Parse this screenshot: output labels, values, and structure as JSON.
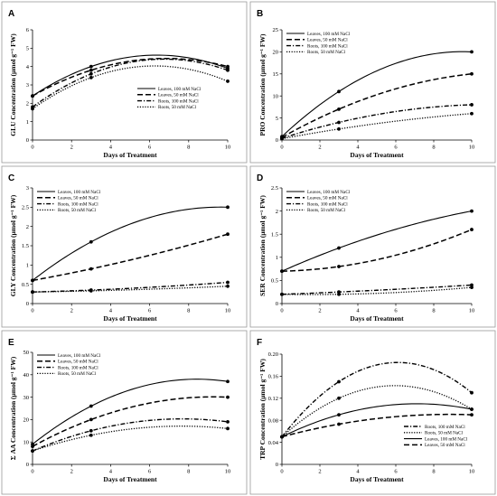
{
  "chart_data": [
    {
      "type": "line",
      "panel_label": "A",
      "xlabel": "Days of Treatment",
      "ylabel": "GLU Concentration (µmol g⁻¹ FW)",
      "xlim": [
        0,
        10
      ],
      "ylim": [
        0,
        6
      ],
      "xticks": [
        0,
        2,
        4,
        6,
        8,
        10
      ],
      "yticks": [
        0,
        1,
        2,
        3,
        4,
        5,
        6
      ],
      "legend_position": "bottom-right",
      "series": [
        {
          "name": "Leaves, 100 mM NaCl",
          "style": "solid",
          "x": [
            0,
            3,
            10
          ],
          "y": [
            2.4,
            4.0,
            3.9
          ]
        },
        {
          "name": "Leaves, 50 mM NaCl",
          "style": "long-dash",
          "x": [
            0,
            3,
            10
          ],
          "y": [
            2.4,
            3.8,
            4.0
          ]
        },
        {
          "name": "Roots, 100 mM NaCl",
          "style": "dash-dot",
          "x": [
            0,
            3,
            10
          ],
          "y": [
            1.8,
            3.6,
            3.8
          ]
        },
        {
          "name": "Roots, 50 mM NaCl",
          "style": "dotted",
          "x": [
            0,
            3,
            10
          ],
          "y": [
            1.7,
            3.4,
            3.2
          ]
        }
      ]
    },
    {
      "type": "line",
      "panel_label": "B",
      "xlabel": "Days of Treatment",
      "ylabel": "PRO Concentration (µmol g⁻¹ FW)",
      "xlim": [
        0,
        10
      ],
      "ylim": [
        0,
        25
      ],
      "xticks": [
        0,
        2,
        4,
        6,
        8,
        10
      ],
      "yticks": [
        0,
        5,
        10,
        15,
        20,
        25
      ],
      "legend_position": "top-left",
      "series": [
        {
          "name": "Leaves, 100 mM NaCl",
          "style": "solid",
          "x": [
            0,
            3,
            10
          ],
          "y": [
            0.8,
            11,
            20
          ]
        },
        {
          "name": "Leaves, 50 mM NaCl",
          "style": "long-dash",
          "x": [
            0,
            3,
            10
          ],
          "y": [
            0.6,
            7,
            15
          ]
        },
        {
          "name": "Roots, 100 mM NaCl",
          "style": "dash-dot",
          "x": [
            0,
            3,
            10
          ],
          "y": [
            0.4,
            4,
            8
          ]
        },
        {
          "name": "Roots, 50 mM NaCl",
          "style": "dotted",
          "x": [
            0,
            3,
            10
          ],
          "y": [
            0.3,
            2.5,
            6
          ]
        }
      ]
    },
    {
      "type": "line",
      "panel_label": "C",
      "xlabel": "Days of Treatment",
      "ylabel": "GLY Concentration (µmol g⁻¹ FW)",
      "xlim": [
        0,
        10
      ],
      "ylim": [
        0,
        3.0
      ],
      "xticks": [
        0,
        2,
        4,
        6,
        8,
        10
      ],
      "yticks": [
        0,
        0.5,
        1.0,
        1.5,
        2.0,
        2.5,
        3.0
      ],
      "legend_position": "top-left",
      "series": [
        {
          "name": "Leaves, 100 mM NaCl",
          "style": "solid",
          "x": [
            0,
            3,
            10
          ],
          "y": [
            0.6,
            1.6,
            2.5
          ]
        },
        {
          "name": "Leaves, 50 mM NaCl",
          "style": "long-dash",
          "x": [
            0,
            3,
            10
          ],
          "y": [
            0.6,
            0.9,
            1.8
          ]
        },
        {
          "name": "Roots, 100 mM NaCl",
          "style": "dash-dot",
          "x": [
            0,
            3,
            10
          ],
          "y": [
            0.3,
            0.35,
            0.55
          ]
        },
        {
          "name": "Roots, 50 mM NaCl",
          "style": "dotted",
          "x": [
            0,
            3,
            10
          ],
          "y": [
            0.3,
            0.33,
            0.45
          ]
        }
      ]
    },
    {
      "type": "line",
      "panel_label": "D",
      "xlabel": "Days of Treatment",
      "ylabel": "SER Concentration (µmol g⁻¹ FW)",
      "xlim": [
        0,
        10
      ],
      "ylim": [
        0,
        2.5
      ],
      "xticks": [
        0,
        2,
        4,
        6,
        8,
        10
      ],
      "yticks": [
        0,
        0.5,
        1.0,
        1.5,
        2.0,
        2.5
      ],
      "legend_position": "top-left",
      "series": [
        {
          "name": "Leaves, 100 mM NaCl",
          "style": "solid",
          "x": [
            0,
            3,
            10
          ],
          "y": [
            0.7,
            1.2,
            2.0
          ]
        },
        {
          "name": "Leaves, 50 mM NaCl",
          "style": "long-dash",
          "x": [
            0,
            3,
            10
          ],
          "y": [
            0.7,
            0.8,
            1.6
          ]
        },
        {
          "name": "Roots, 100 mM NaCl",
          "style": "dash-dot",
          "x": [
            0,
            3,
            10
          ],
          "y": [
            0.2,
            0.25,
            0.4
          ]
        },
        {
          "name": "Roots, 50 mM NaCl",
          "style": "dotted",
          "x": [
            0,
            3,
            10
          ],
          "y": [
            0.2,
            0.2,
            0.35
          ]
        }
      ]
    },
    {
      "type": "line",
      "panel_label": "E",
      "xlabel": "Days of Treatment",
      "ylabel": "Σ AA Concentration (µmol g⁻¹ FW)",
      "xlim": [
        0,
        10
      ],
      "ylim": [
        0,
        50
      ],
      "xticks": [
        0,
        2,
        4,
        6,
        8,
        10
      ],
      "yticks": [
        0,
        10,
        20,
        30,
        40,
        50
      ],
      "legend_position": "top-left",
      "series": [
        {
          "name": "Leaves, 100 mM NaCl",
          "style": "solid",
          "x": [
            0,
            3,
            10
          ],
          "y": [
            9,
            26,
            37
          ]
        },
        {
          "name": "Leaves, 50 mM NaCl",
          "style": "long-dash",
          "x": [
            0,
            3,
            10
          ],
          "y": [
            8,
            20,
            30
          ]
        },
        {
          "name": "Roots, 100 mM NaCl",
          "style": "dash-dot",
          "x": [
            0,
            3,
            10
          ],
          "y": [
            6,
            15,
            19
          ]
        },
        {
          "name": "Roots, 50 mM NaCl",
          "style": "dotted",
          "x": [
            0,
            3,
            10
          ],
          "y": [
            6,
            13,
            16
          ]
        }
      ]
    },
    {
      "type": "line",
      "panel_label": "F",
      "xlabel": "Days of Treatment",
      "ylabel": "TRP Concentration (µmol g⁻¹ FW)",
      "xlim": [
        0,
        10
      ],
      "ylim": [
        0,
        0.2
      ],
      "xticks": [
        0,
        2,
        4,
        6,
        8,
        10
      ],
      "yticks": [
        0,
        0.04,
        0.08,
        0.12,
        0.16,
        0.2
      ],
      "ytick_labels": [
        "0",
        "0.04",
        "0.08",
        "0.12",
        "0.16",
        "0.20"
      ],
      "legend_position": "bottom-right",
      "series": [
        {
          "name": "Roots, 100 mM NaCl",
          "style": "dash-dot",
          "x": [
            0,
            3,
            10
          ],
          "y": [
            0.05,
            0.15,
            0.13
          ]
        },
        {
          "name": "Roots, 50 mM NaCl",
          "style": "dotted",
          "x": [
            0,
            3,
            10
          ],
          "y": [
            0.05,
            0.12,
            0.1
          ]
        },
        {
          "name": "Leaves, 100 mM NaCl",
          "style": "solid",
          "x": [
            0,
            3,
            10
          ],
          "y": [
            0.05,
            0.09,
            0.1
          ]
        },
        {
          "name": "Leaves, 50 mM NaCl",
          "style": "long-dash",
          "x": [
            0,
            3,
            10
          ],
          "y": [
            0.05,
            0.073,
            0.09
          ]
        }
      ]
    }
  ]
}
